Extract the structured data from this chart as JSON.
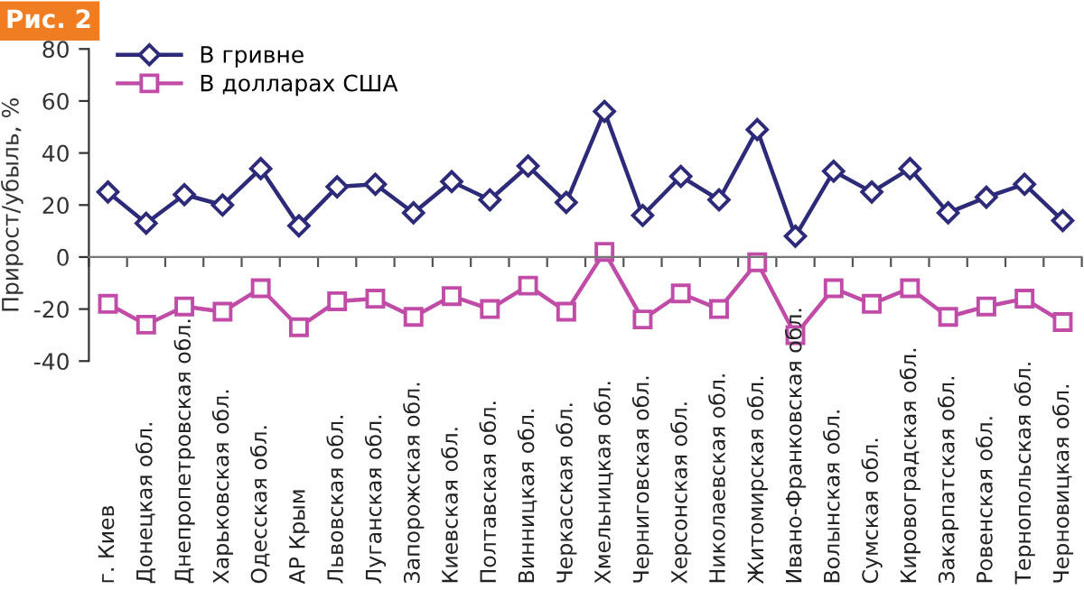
{
  "chart_data": {
    "type": "line",
    "title": "Рис. 2",
    "ylabel": "Прирост/убыль, %",
    "categories": [
      "г. Киев",
      "Донецкая обл.",
      "Днепропетровская обл.",
      "Харьковская обл.",
      "Одесская обл.",
      "АР Крым",
      "Львовская обл.",
      "Луганская обл.",
      "Запорожская обл.",
      "Киевская обл.",
      "Полтавская обл.",
      "Винницкая обл.",
      "Черкасская обл.",
      "Хмельницкая обл.",
      "Черниговская обл.",
      "Херсонская обл.",
      "Николаевская обл.",
      "Житомирская обл.",
      "Ивано-Франковская обл.",
      "Волынская обл.",
      "Сумская обл.",
      "Кировоградская обл.",
      "Закарпатская обл.",
      "Ровенская обл.",
      "Тернопольская обл.",
      "Черновицкая обл."
    ],
    "series": [
      {
        "name": "В гривне",
        "color": "#2e2a7a",
        "marker": "diamond",
        "values": [
          25,
          13,
          24,
          20,
          34,
          12,
          27,
          28,
          17,
          29,
          22,
          35,
          21,
          56,
          16,
          31,
          22,
          49,
          8,
          33,
          25,
          34,
          17,
          23,
          28,
          14
        ]
      },
      {
        "name": "В долларах США",
        "color": "#c04ca8",
        "marker": "square",
        "values": [
          -18,
          -26,
          -19,
          -21,
          -12,
          -27,
          -17,
          -16,
          -23,
          -15,
          -20,
          -11,
          -21,
          2,
          -24,
          -14,
          -20,
          -2,
          -30,
          -12,
          -18,
          -12,
          -23,
          -19,
          -16,
          -25
        ]
      }
    ],
    "ylim": [
      -40,
      80
    ],
    "yticks": [
      -40,
      -20,
      0,
      20,
      40,
      60,
      80
    ],
    "grid": false,
    "legend": "top left",
    "line_style": "solid"
  }
}
